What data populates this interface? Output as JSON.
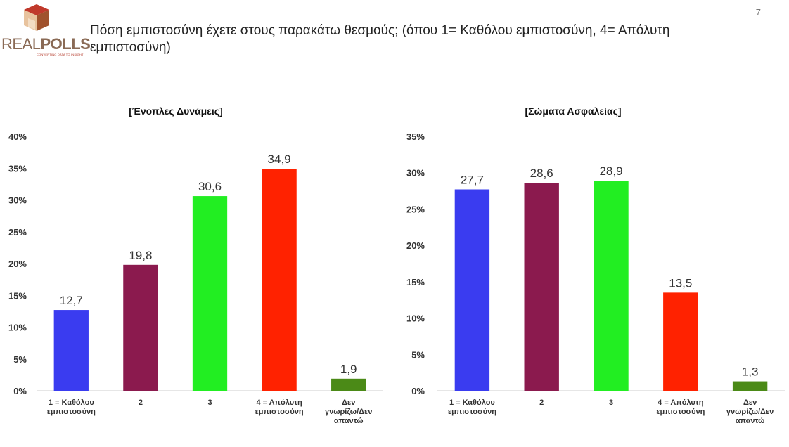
{
  "page": {
    "logo_text_light": "REAL",
    "logo_text_bold": "POLLS",
    "logo_tagline": "CONVERTING DATA TO INSIGHT",
    "page_number": "7",
    "question": "Πόση εμπιστοσύνη έχετε στους παρακάτω θεσμούς; (όπου 1= Καθόλου εμπιστοσύνη, 4= Απόλυτη εμπιστοσύνη)"
  },
  "chart_data": [
    {
      "type": "bar",
      "title": "[Ένοπλες Δυνάμεις]",
      "categories": [
        [
          "1 = Καθόλου",
          "εμπιστοσύνη"
        ],
        [
          "2"
        ],
        [
          "3"
        ],
        [
          "4 = Απόλυτη",
          "εμπιστοσύνη"
        ],
        [
          "Δεν",
          "γνωρίζω/Δεν",
          "απαντώ"
        ]
      ],
      "values": [
        12.7,
        19.8,
        30.6,
        34.9,
        1.9
      ],
      "value_labels": [
        "12,7",
        "19,8",
        "30,6",
        "34,9",
        "1,9"
      ],
      "colors": [
        "#3a3cf0",
        "#8b1a4e",
        "#22ee22",
        "#ff2200",
        "#4b8a17"
      ],
      "ylim": [
        0,
        40
      ],
      "yticks": [
        "0%",
        "5%",
        "10%",
        "15%",
        "20%",
        "25%",
        "30%",
        "35%",
        "40%"
      ],
      "grid": false
    },
    {
      "type": "bar",
      "title": "[Σώματα Ασφαλείας]",
      "categories": [
        [
          "1 = Καθόλου",
          "εμπιστοσύνη"
        ],
        [
          "2"
        ],
        [
          "3"
        ],
        [
          "4 = Απόλυτη",
          "εμπιστοσύνη"
        ],
        [
          "Δεν",
          "γνωρίζω/Δεν",
          "απαντώ"
        ]
      ],
      "values": [
        27.7,
        28.6,
        28.9,
        13.5,
        1.3
      ],
      "value_labels": [
        "27,7",
        "28,6",
        "28,9",
        "13,5",
        "1,3"
      ],
      "colors": [
        "#3a3cf0",
        "#8b1a4e",
        "#22ee22",
        "#ff2200",
        "#4b8a17"
      ],
      "ylim": [
        0,
        35
      ],
      "yticks": [
        "0%",
        "5%",
        "10%",
        "15%",
        "20%",
        "25%",
        "30%",
        "35%"
      ],
      "grid": false
    }
  ]
}
